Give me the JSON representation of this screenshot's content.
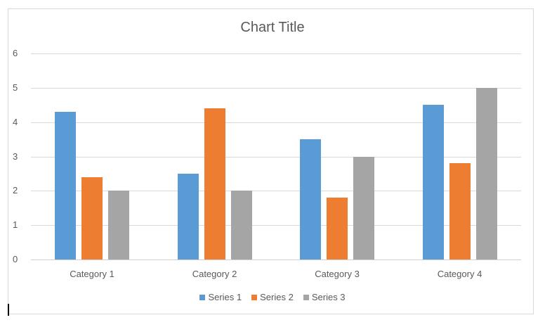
{
  "chart_data": {
    "type": "bar",
    "title": "Chart Title",
    "xlabel": "",
    "ylabel": "",
    "categories": [
      "Category 1",
      "Category 2",
      "Category 3",
      "Category 4"
    ],
    "series": [
      {
        "name": "Series 1",
        "color": "#5B9BD5",
        "values": [
          4.3,
          2.5,
          3.5,
          4.5
        ]
      },
      {
        "name": "Series 2",
        "color": "#ED7D31",
        "values": [
          2.4,
          4.4,
          1.8,
          2.8
        ]
      },
      {
        "name": "Series 3",
        "color": "#A5A5A5",
        "values": [
          2,
          2,
          3,
          5
        ]
      }
    ],
    "yticks": [
      "0",
      "1",
      "2",
      "3",
      "4",
      "5",
      "6"
    ],
    "ylim": [
      0,
      6
    ],
    "grid": true,
    "legend_position": "bottom"
  }
}
